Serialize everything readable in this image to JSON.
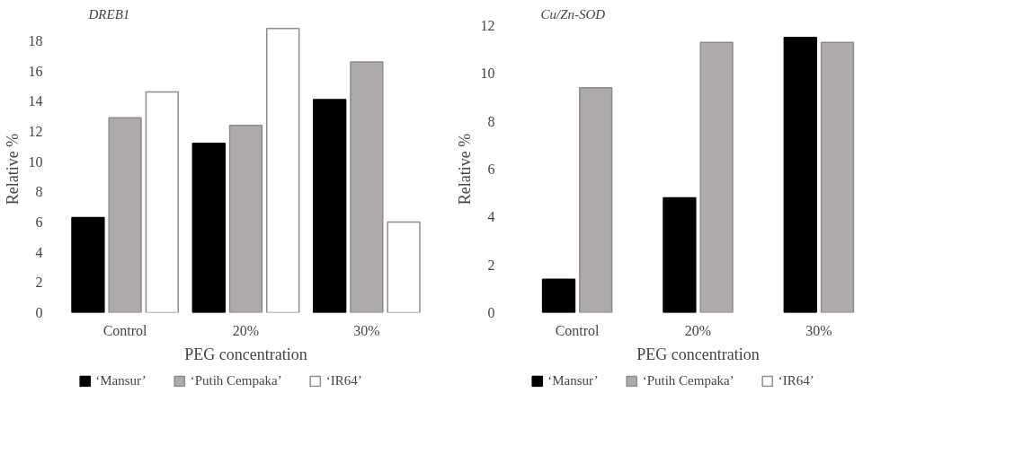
{
  "chart_data": [
    {
      "type": "bar",
      "title": "DREB1",
      "categories": [
        "Control",
        "20%",
        "30%"
      ],
      "xlabel": "PEG concentration",
      "ylabel": "Relative %",
      "ylim": [
        0,
        19
      ],
      "yticks": [
        0,
        2,
        4,
        6,
        8,
        10,
        12,
        14,
        16,
        18
      ],
      "grid": false,
      "legend": "bottom",
      "series": [
        {
          "name": "‘Mansur’",
          "color": "#000000",
          "values": [
            6.3,
            11.2,
            14.1
          ]
        },
        {
          "name": "‘Putih Cempaka’",
          "color": "#aeaaaa",
          "values": [
            12.9,
            12.4,
            16.6
          ]
        },
        {
          "name": "‘IR64’",
          "color": "#ffffff",
          "values": [
            14.6,
            18.8,
            6.0
          ]
        }
      ]
    },
    {
      "type": "bar",
      "title": "Cu/Zn-SOD",
      "categories": [
        "Control",
        "20%",
        "30%"
      ],
      "xlabel": "PEG concentration",
      "ylabel": "Relative %",
      "ylim": [
        0,
        12
      ],
      "yticks": [
        0,
        2,
        4,
        6,
        8,
        10,
        12
      ],
      "grid": false,
      "legend": "bottom",
      "series": [
        {
          "name": "‘Mansur’",
          "color": "#000000",
          "values": [
            1.4,
            4.8,
            11.5
          ]
        },
        {
          "name": "‘Putih Cempaka’",
          "color": "#aeaaaa",
          "values": [
            9.4,
            11.3,
            11.3
          ]
        },
        {
          "name": "‘IR64’",
          "color": "#ffffff",
          "values": [
            null,
            null,
            null
          ]
        }
      ]
    }
  ]
}
